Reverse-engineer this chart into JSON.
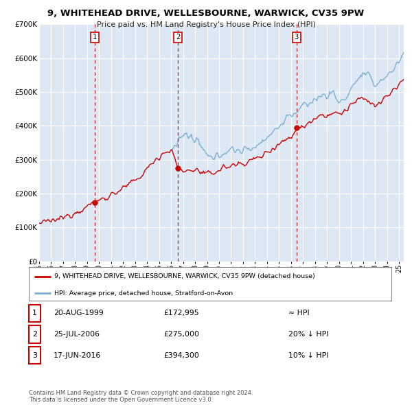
{
  "title": "9, WHITEHEAD DRIVE, WELLESBOURNE, WARWICK, CV35 9PW",
  "subtitle": "Price paid vs. HM Land Registry's House Price Index (HPI)",
  "hpi_label": "HPI: Average price, detached house, Stratford-on-Avon",
  "property_label": "9, WHITEHEAD DRIVE, WELLESBOURNE, WARWICK, CV35 9PW (detached house)",
  "hpi_color": "#7ab0d4",
  "property_color": "#cc0000",
  "fig_bg_color": "#ffffff",
  "plot_bg_color": "#dde8f4",
  "grid_color": "#ffffff",
  "ylim": [
    0,
    700000
  ],
  "yticks": [
    0,
    100000,
    200000,
    300000,
    400000,
    500000,
    600000,
    700000
  ],
  "ytick_labels": [
    "£0",
    "£100K",
    "£200K",
    "£300K",
    "£400K",
    "£500K",
    "£600K",
    "£700K"
  ],
  "xmin": 1995.0,
  "xmax": 2025.4,
  "sale_dates": [
    1999.637,
    2006.562,
    2016.458
  ],
  "sale_prices": [
    172995,
    275000,
    394300
  ],
  "sale_labels": [
    "1",
    "2",
    "3"
  ],
  "footer_text": "Contains HM Land Registry data © Crown copyright and database right 2024.\nThis data is licensed under the Open Government Licence v3.0.",
  "table_rows": [
    {
      "num": "1",
      "date": "20-AUG-1999",
      "price": "£172,995",
      "rel": "≈ HPI"
    },
    {
      "num": "2",
      "date": "25-JUL-2006",
      "price": "£275,000",
      "rel": "20% ↓ HPI"
    },
    {
      "num": "3",
      "date": "17-JUN-2016",
      "price": "£394,300",
      "rel": "10% ↓ HPI"
    }
  ]
}
